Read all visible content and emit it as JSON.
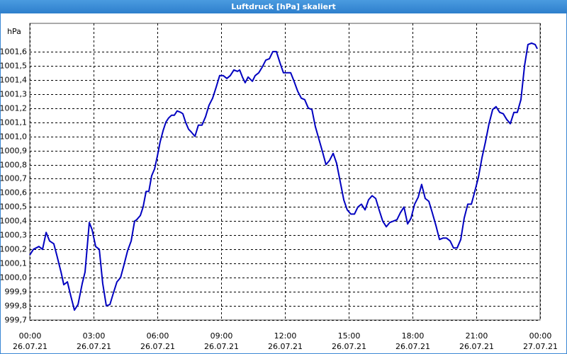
{
  "chart_data": {
    "type": "line",
    "title": "Luftdruck [hPa] skaliert",
    "y_label": "hPa",
    "xlim": [
      0,
      24
    ],
    "ylim": [
      999.7,
      1001.8
    ],
    "grid": true,
    "xticks": [
      {
        "value": 0,
        "label": "00:00"
      },
      {
        "value": 3,
        "label": "03:00"
      },
      {
        "value": 6,
        "label": "06:00"
      },
      {
        "value": 9,
        "label": "09:00"
      },
      {
        "value": 12,
        "label": "12:00"
      },
      {
        "value": 15,
        "label": "15:00"
      },
      {
        "value": 18,
        "label": "18:00"
      },
      {
        "value": 21,
        "label": "21:00"
      },
      {
        "value": 24,
        "label": "00:00"
      }
    ],
    "xtick_dates": [
      "26.07.21",
      "26.07.21",
      "26.07.21",
      "26.07.21",
      "26.07.21",
      "26.07.21",
      "26.07.21",
      "26.07.21",
      "27.07.21"
    ],
    "yticks": [
      {
        "value": 999.7,
        "label": "999,7"
      },
      {
        "value": 999.8,
        "label": "999,8"
      },
      {
        "value": 999.9,
        "label": "999,9"
      },
      {
        "value": 1000.0,
        "label": "1000,0"
      },
      {
        "value": 1000.1,
        "label": "1000,1"
      },
      {
        "value": 1000.2,
        "label": "1000,2"
      },
      {
        "value": 1000.3,
        "label": "1000,3"
      },
      {
        "value": 1000.4,
        "label": "1000,4"
      },
      {
        "value": 1000.5,
        "label": "1000,5"
      },
      {
        "value": 1000.6,
        "label": "1000,6"
      },
      {
        "value": 1000.7,
        "label": "1000,7"
      },
      {
        "value": 1000.8,
        "label": "1000,8"
      },
      {
        "value": 1000.9,
        "label": "1000,9"
      },
      {
        "value": 1001.0,
        "label": "1001,0"
      },
      {
        "value": 1001.1,
        "label": "1001,1"
      },
      {
        "value": 1001.2,
        "label": "1001,2"
      },
      {
        "value": 1001.3,
        "label": "1001,3"
      },
      {
        "value": 1001.4,
        "label": "1001,4"
      },
      {
        "value": 1001.5,
        "label": "1001,5"
      },
      {
        "value": 1001.6,
        "label": "1001,6"
      }
    ],
    "series": [
      {
        "color": "#0000c0",
        "x": [
          0,
          0.17,
          0.43,
          0.6,
          0.77,
          0.93,
          1.13,
          1.27,
          1.47,
          1.6,
          1.77,
          1.93,
          2.1,
          2.27,
          2.47,
          2.6,
          2.8,
          2.93,
          3.1,
          3.27,
          3.43,
          3.6,
          3.77,
          3.93,
          4.1,
          4.27,
          4.43,
          4.6,
          4.77,
          4.93,
          5.03,
          5.2,
          5.33,
          5.47,
          5.6,
          5.73,
          5.87,
          6.0,
          6.13,
          6.27,
          6.4,
          6.53,
          6.67,
          6.8,
          6.93,
          7.1,
          7.2,
          7.33,
          7.47,
          7.6,
          7.77,
          7.93,
          8.1,
          8.27,
          8.43,
          8.6,
          8.77,
          8.93,
          9.1,
          9.27,
          9.43,
          9.6,
          9.77,
          9.87,
          10.0,
          10.13,
          10.27,
          10.47,
          10.6,
          10.77,
          10.93,
          11.1,
          11.27,
          11.43,
          11.6,
          11.77,
          11.93,
          12.27,
          12.43,
          12.6,
          12.77,
          12.93,
          13.1,
          13.27,
          13.43,
          13.6,
          13.77,
          13.93,
          14.1,
          14.27,
          14.43,
          14.6,
          14.77,
          14.93,
          15.1,
          15.27,
          15.43,
          15.6,
          15.77,
          15.93,
          16.1,
          16.27,
          16.43,
          16.6,
          16.77,
          16.93,
          17.1,
          17.27,
          17.43,
          17.6,
          17.77,
          17.93,
          18.1,
          18.27,
          18.43,
          18.6,
          18.77,
          18.93,
          19.1,
          19.27,
          19.43,
          19.6,
          19.77,
          19.93,
          20.1,
          20.27,
          20.43,
          20.6,
          20.77,
          20.93,
          21.1,
          21.27,
          21.43,
          21.6,
          21.77,
          21.93,
          22.1,
          22.27,
          22.43,
          22.6,
          22.77,
          22.93,
          23.1,
          23.27,
          23.43,
          23.6,
          23.77,
          23.87
        ],
        "values": [
          1000.16,
          1000.2,
          1000.22,
          1000.2,
          1000.32,
          1000.26,
          1000.24,
          1000.16,
          1000.04,
          999.95,
          999.97,
          999.87,
          999.77,
          999.81,
          999.96,
          1000.04,
          1000.39,
          1000.34,
          1000.22,
          1000.2,
          999.96,
          999.8,
          999.81,
          999.89,
          999.97,
          1000.0,
          1000.09,
          1000.19,
          1000.26,
          1000.4,
          1000.41,
          1000.44,
          1000.5,
          1000.61,
          1000.61,
          1000.72,
          1000.77,
          1000.86,
          1000.96,
          1001.04,
          1001.1,
          1001.13,
          1001.15,
          1001.15,
          1001.18,
          1001.17,
          1001.16,
          1001.1,
          1001.05,
          1001.03,
          1001.0,
          1001.08,
          1001.08,
          1001.14,
          1001.22,
          1001.27,
          1001.35,
          1001.43,
          1001.43,
          1001.41,
          1001.43,
          1001.47,
          1001.46,
          1001.47,
          1001.42,
          1001.38,
          1001.42,
          1001.39,
          1001.43,
          1001.45,
          1001.49,
          1001.54,
          1001.55,
          1001.6,
          1001.6,
          1001.52,
          1001.45,
          1001.45,
          1001.39,
          1001.32,
          1001.27,
          1001.26,
          1001.2,
          1001.19,
          1001.07,
          1000.98,
          1000.89,
          1000.8,
          1000.83,
          1000.88,
          1000.81,
          1000.68,
          1000.55,
          1000.48,
          1000.45,
          1000.45,
          1000.5,
          1000.52,
          1000.48,
          1000.55,
          1000.58,
          1000.56,
          1000.48,
          1000.4,
          1000.36,
          1000.39,
          1000.4,
          1000.41,
          1000.46,
          1000.5,
          1000.38,
          1000.42,
          1000.52,
          1000.57,
          1000.66,
          1000.56,
          1000.54,
          1000.46,
          1000.37,
          1000.27,
          1000.28,
          1000.28,
          1000.26,
          1000.21,
          1000.21,
          1000.27,
          1000.42,
          1000.52,
          1000.52,
          1000.61,
          1000.71,
          1000.85,
          1000.96,
          1001.09,
          1001.19,
          1001.21,
          1001.17,
          1001.16,
          1001.12,
          1001.09,
          1001.17,
          1001.17,
          1001.26,
          1001.5,
          1001.65,
          1001.66,
          1001.65,
          1001.62
        ]
      }
    ]
  }
}
